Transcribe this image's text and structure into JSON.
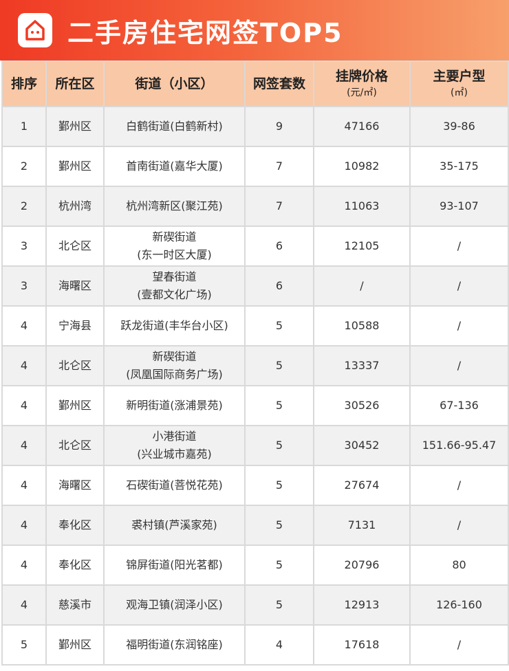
{
  "title": "二手房住宅网签TOP5",
  "colors": {
    "banner_start": "#ef3a24",
    "banner_end": "#f7a06c",
    "header_bg": "#f9c8a6"
  },
  "headers": [
    {
      "label": "排序",
      "sub": ""
    },
    {
      "label": "所在区",
      "sub": ""
    },
    {
      "label": "街道（小区）",
      "sub": ""
    },
    {
      "label": "网签套数",
      "sub": ""
    },
    {
      "label": "挂牌价格",
      "sub": "(元/㎡)"
    },
    {
      "label": "主要户型",
      "sub": "(㎡)"
    }
  ],
  "rows": [
    [
      "1",
      "鄞州区",
      "白鹤街道(白鹤新村)",
      "",
      "9",
      "47166",
      "39-86"
    ],
    [
      "2",
      "鄞州区",
      "首南街道(嘉华大厦)",
      "",
      "7",
      "10982",
      "35-175"
    ],
    [
      "2",
      "杭州湾",
      "杭州湾新区(聚江苑)",
      "",
      "7",
      "11063",
      "93-107"
    ],
    [
      "3",
      "北仑区",
      "新碶街道",
      "(东一时区大厦)",
      "6",
      "12105",
      "/"
    ],
    [
      "3",
      "海曙区",
      "望春街道",
      "(壹都文化广场)",
      "6",
      "/",
      "/"
    ],
    [
      "4",
      "宁海县",
      "跃龙街道(丰华台小区)",
      "",
      "5",
      "10588",
      "/"
    ],
    [
      "4",
      "北仑区",
      "新碶街道",
      "(凤凰国际商务广场)",
      "5",
      "13337",
      "/"
    ],
    [
      "4",
      "鄞州区",
      "新明街道(涨浦景苑)",
      "",
      "5",
      "30526",
      "67-136"
    ],
    [
      "4",
      "北仑区",
      "小港街道",
      "(兴业城市嘉苑)",
      "5",
      "30452",
      "151.66-95.47"
    ],
    [
      "4",
      "海曙区",
      "石碶街道(菩悦花苑)",
      "",
      "5",
      "27674",
      "/"
    ],
    [
      "4",
      "奉化区",
      "裘村镇(芦溪家苑)",
      "",
      "5",
      "7131",
      "/"
    ],
    [
      "4",
      "奉化区",
      "锦屏街道(阳光茗都)",
      "",
      "5",
      "20796",
      "80"
    ],
    [
      "4",
      "慈溪市",
      "观海卫镇(润泽小区)",
      "",
      "5",
      "12913",
      "126-160"
    ],
    [
      "5",
      "鄞州区",
      "福明街道(东润铭座)",
      "",
      "4",
      "17618",
      "/"
    ]
  ]
}
